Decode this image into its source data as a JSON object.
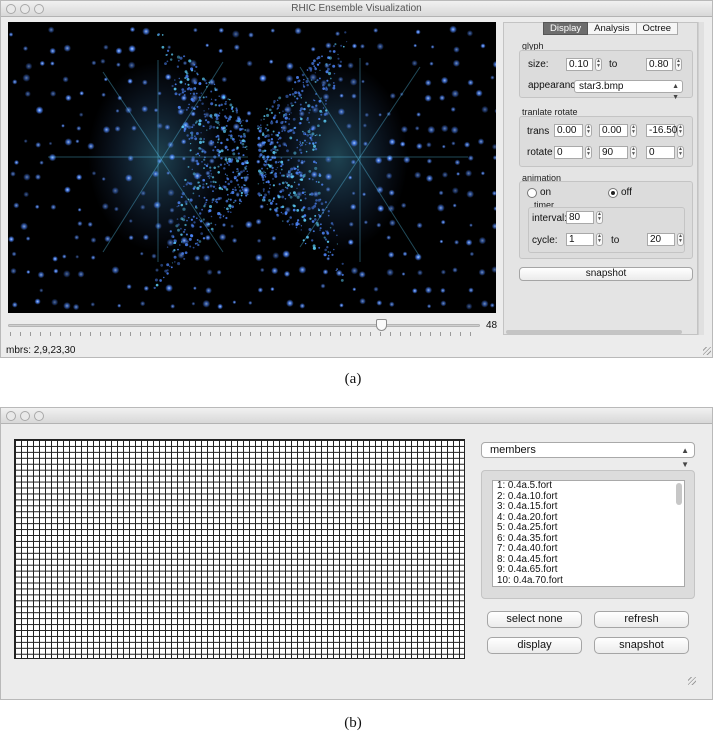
{
  "window_a": {
    "title": "RHIC Ensemble Visualization",
    "tabs": [
      "Display",
      "Analysis",
      "Octree"
    ],
    "active_tab": "Display",
    "glyph": {
      "group_label": "glyph",
      "size_label": "size:",
      "size_from": "0.10",
      "to_label": "to",
      "size_to": "0.80",
      "appearance_label": "appearance",
      "appearance_value": "star3.bmp"
    },
    "transform": {
      "group_label": "tranlate  rotate",
      "trans_label": "trans",
      "trans_values": [
        "0.00",
        "0.00",
        "-16.50"
      ],
      "rotate_label": "rotate",
      "rotate_values": [
        "0",
        "90",
        "0"
      ]
    },
    "animation": {
      "group_label": "animation",
      "on_label": "on",
      "off_label": "off",
      "selected": "off",
      "timer_label": "timer",
      "interval_label": "interval:",
      "interval_value": "80",
      "cycle_label": "cycle:",
      "cycle_from": "1",
      "to_label": "to",
      "cycle_to": "20"
    },
    "snapshot_label": "snapshot",
    "slider_value": "48",
    "slider_fraction": 0.79,
    "status_text": "mbrs: 2,9,23,30"
  },
  "caption_a": "(a)",
  "window_b": {
    "combo_value": "members",
    "members": [
      "1: 0.4a.5.fort",
      "2: 0.4a.10.fort",
      "3: 0.4a.15.fort",
      "4: 0.4a.20.fort",
      "5: 0.4a.25.fort",
      "6: 0.4a.35.fort",
      "7: 0.4a.40.fort",
      "8: 0.4a.45.fort",
      "9: 0.4a.65.fort",
      "10: 0.4a.70.fort"
    ],
    "buttons": {
      "select_none": "select none",
      "refresh": "refresh",
      "display": "display",
      "snapshot": "snapshot"
    }
  },
  "caption_b": "(b)",
  "colors": {
    "glyph_blue": "#4f88ff",
    "glyph_cyan": "#5fd4ff",
    "viewport_bg": "#000000"
  }
}
